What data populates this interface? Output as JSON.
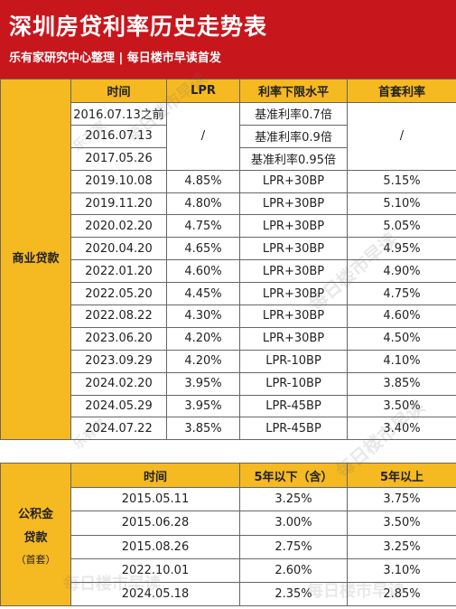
{
  "header": {
    "title": "深圳房贷利率历史走势表",
    "subtitle": "乐有家研究中心整理 | 每日楼市早读首发"
  },
  "commercial": {
    "side_label": "商业贷款",
    "headers": [
      "时间",
      "LPR",
      "利率下限水平",
      "首套利率"
    ],
    "legacy_rows": [
      {
        "date": "2016.07.13之前",
        "floor": "基准利率0.7倍"
      },
      {
        "date": "2016.07.13",
        "floor": "基准利率0.9倍"
      },
      {
        "date": "2017.05.26",
        "floor": "基准利率0.95倍"
      }
    ],
    "legacy_lpr": "/",
    "legacy_first": "/",
    "rows": [
      {
        "date": "2019.10.08",
        "lpr": "4.85%",
        "floor": "LPR+30BP",
        "first": "5.15%"
      },
      {
        "date": "2019.11.20",
        "lpr": "4.80%",
        "floor": "LPR+30BP",
        "first": "5.10%"
      },
      {
        "date": "2020.02.20",
        "lpr": "4.75%",
        "floor": "LPR+30BP",
        "first": "5.05%"
      },
      {
        "date": "2020.04.20",
        "lpr": "4.65%",
        "floor": "LPR+30BP",
        "first": "4.95%"
      },
      {
        "date": "2022.01.20",
        "lpr": "4.60%",
        "floor": "LPR+30BP",
        "first": "4.90%"
      },
      {
        "date": "2022.05.20",
        "lpr": "4.45%",
        "floor": "LPR+30BP",
        "first": "4.75%"
      },
      {
        "date": "2022.08.22",
        "lpr": "4.30%",
        "floor": "LPR+30BP",
        "first": "4.60%"
      },
      {
        "date": "2023.06.20",
        "lpr": "4.20%",
        "floor": "LPR+30BP",
        "first": "4.50%"
      },
      {
        "date": "2023.09.29",
        "lpr": "4.20%",
        "floor": "LPR-10BP",
        "first": "4.10%"
      },
      {
        "date": "2024.02.20",
        "lpr": "3.95%",
        "floor": "LPR-10BP",
        "first": "3.85%"
      },
      {
        "date": "2024.05.29",
        "lpr": "3.95%",
        "floor": "LPR-45BP",
        "first": "3.50%"
      },
      {
        "date": "2024.07.22",
        "lpr": "3.85%",
        "floor": "LPR-45BP",
        "first": "3.40%"
      }
    ]
  },
  "fund": {
    "side_label": "公积金贷款",
    "side_note": "（首套）",
    "headers": [
      "时间",
      "5年以下（含）",
      "5年以上"
    ],
    "rows": [
      {
        "date": "2015.05.11",
        "short": "3.25%",
        "long": "3.75%"
      },
      {
        "date": "2015.06.28",
        "short": "3.00%",
        "long": "3.50%"
      },
      {
        "date": "2015.08.26",
        "short": "2.75%",
        "long": "3.25%"
      },
      {
        "date": "2022.10.01",
        "short": "2.60%",
        "long": "3.10%"
      },
      {
        "date": "2024.05.18",
        "short": "2.35%",
        "long": "2.85%"
      }
    ]
  },
  "watermarks": [
    "乐有家",
    "每日楼市早读"
  ],
  "colors": {
    "header_red": "#c8161d",
    "header_yellow": "#f5b921",
    "side_cream": "#fde3a1"
  }
}
